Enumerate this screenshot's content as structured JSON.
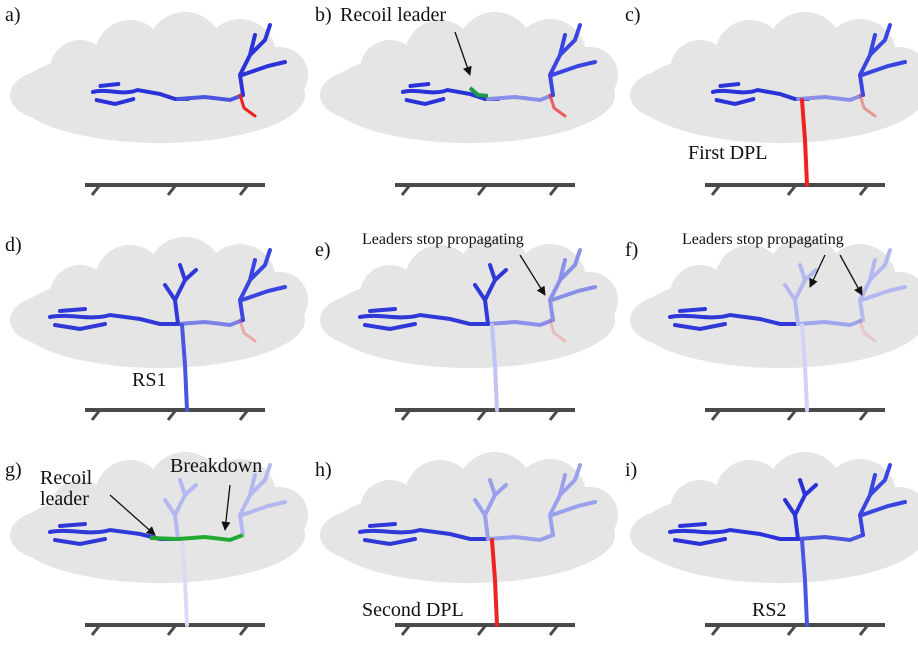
{
  "panels": [
    {
      "label": "a)"
    },
    {
      "label": "b)",
      "annotations": [
        "Recoil leader"
      ]
    },
    {
      "label": "c)",
      "annotations": [
        "First DPL"
      ]
    },
    {
      "label": "d)",
      "annotations": [
        "RS1"
      ]
    },
    {
      "label": "e)",
      "annotations": [
        "Leaders stop propagating"
      ]
    },
    {
      "label": "f)",
      "annotations": [
        "Leaders stop propagating"
      ]
    },
    {
      "label": "g)",
      "annotations": [
        "Recoil leader",
        "Breakdown"
      ]
    },
    {
      "label": "h)",
      "annotations": [
        "Second DPL"
      ]
    },
    {
      "label": "i)",
      "annotations": [
        "RS2"
      ]
    }
  ]
}
